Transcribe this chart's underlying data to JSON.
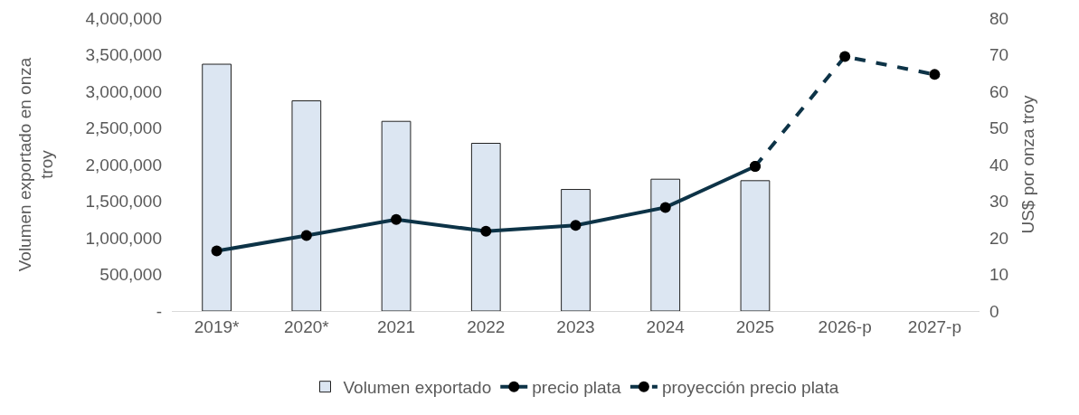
{
  "chart_data": {
    "type": "bar",
    "categories": [
      "2019*",
      "2020*",
      "2021",
      "2022",
      "2023",
      "2024",
      "2025",
      "2026-p",
      "2027-p"
    ],
    "ylabel": "Volumen exportado en onza troy",
    "y2label": "US$ por onza troy",
    "series": [
      {
        "name": "Volumen exportado",
        "color": "#dce6f2",
        "values": [
          3370000,
          2870000,
          2590000,
          2290000,
          1660000,
          1800000,
          1780000,
          null,
          null
        ]
      },
      {
        "name": "precio plata",
        "type": "line",
        "axis": "y2",
        "color": "#0d3347",
        "line_style": "solid",
        "marker": "circle",
        "values": [
          16.4,
          20.6,
          25.0,
          21.8,
          23.4,
          28.3,
          39.5,
          null,
          null
        ]
      },
      {
        "name": "proyección precio plata",
        "type": "line",
        "axis": "y2",
        "color": "#0d3347",
        "line_style": "dashed",
        "marker": "circle",
        "values": [
          null,
          null,
          null,
          null,
          null,
          null,
          39.5,
          69.5,
          64.6
        ]
      }
    ],
    "ylim": [
      0,
      4000000
    ],
    "yticks": [
      {
        "value": 0,
        "label": "-"
      },
      {
        "value": 500000,
        "label": "500,000"
      },
      {
        "value": 1000000,
        "label": "1,000,000"
      },
      {
        "value": 1500000,
        "label": "1,500,000"
      },
      {
        "value": 2000000,
        "label": "2,000,000"
      },
      {
        "value": 2500000,
        "label": "2,500,000"
      },
      {
        "value": 3000000,
        "label": "3,000,000"
      },
      {
        "value": 3500000,
        "label": "3,500,000"
      },
      {
        "value": 4000000,
        "label": "4,000,000"
      }
    ],
    "y2lim": [
      0,
      80
    ],
    "y2ticks": [
      0,
      10,
      20,
      30,
      40,
      50,
      60,
      70,
      80
    ],
    "grid": false,
    "legend": "bottom"
  }
}
